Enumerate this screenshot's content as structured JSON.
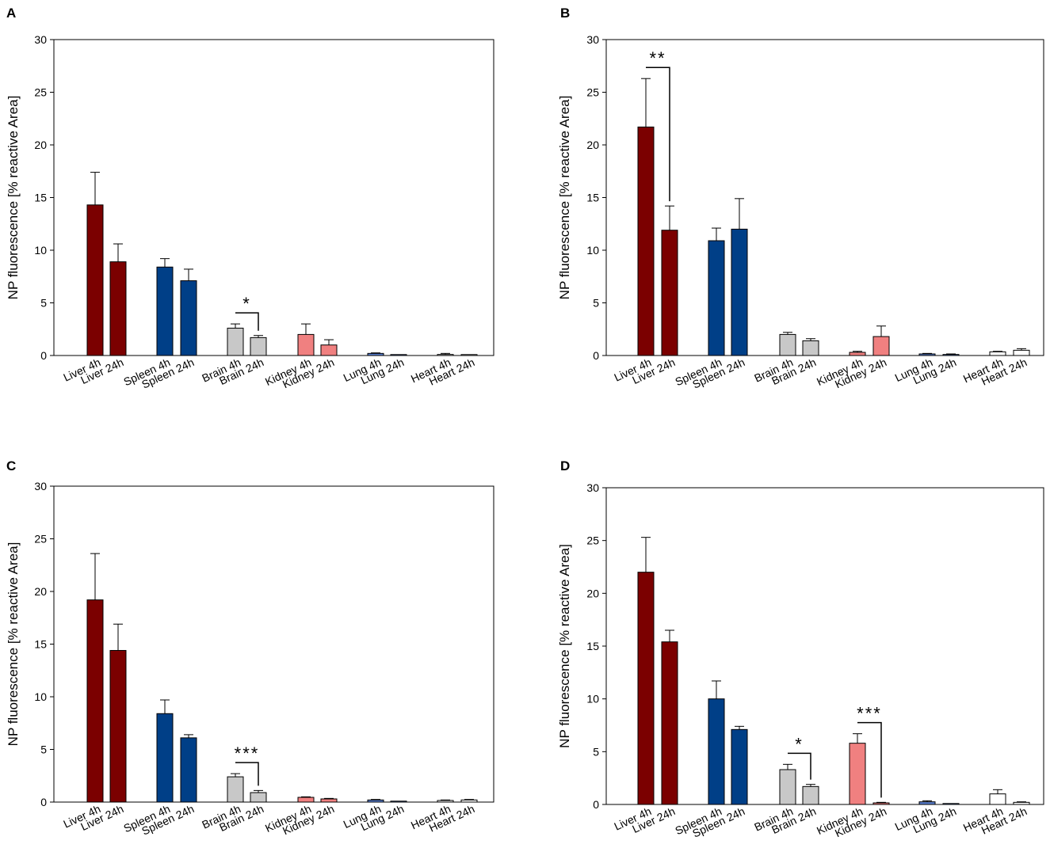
{
  "chart_data": [
    {
      "panel": "A",
      "type": "bar",
      "ylabel": "NP fluorescence [% reactive Area]",
      "ylim": [
        0,
        30
      ],
      "yticks": [
        0,
        5,
        10,
        15,
        20,
        25,
        30
      ],
      "categories": [
        "Liver 4h",
        "Liver 24h",
        "Spleen 4h",
        "Spleen 24h",
        "Brain 4h",
        "Brain 24h",
        "Kidney 4h",
        "Kidney 24h",
        "Lung 4h",
        "Lung 24h",
        "Heart 4h",
        "Heart 24h"
      ],
      "values": [
        14.3,
        8.9,
        8.4,
        7.1,
        2.6,
        1.7,
        2.0,
        1.0,
        0.2,
        0.05,
        0.1,
        0.05
      ],
      "errors": [
        3.1,
        1.7,
        0.8,
        1.1,
        0.4,
        0.2,
        1.0,
        0.5,
        0.05,
        0.02,
        0.1,
        0.02
      ],
      "colors": [
        "#7b0000",
        "#7b0000",
        "#003f87",
        "#003f87",
        "#c8c8c8",
        "#c8c8c8",
        "#f08080",
        "#f08080",
        "#5a7fd0",
        "#5a7fd0",
        "#ffffff",
        "#ffffff"
      ],
      "annotations": [
        {
          "label": "*",
          "from": 4,
          "to": 5
        }
      ]
    },
    {
      "panel": "B",
      "type": "bar",
      "ylabel": "NP fluorescence [% reactive Area]",
      "ylim": [
        0,
        30
      ],
      "yticks": [
        0,
        5,
        10,
        15,
        20,
        25,
        30
      ],
      "categories": [
        "Liver 4h",
        "Liver 24h",
        "Spleen 4h",
        "Spleen 24h",
        "Brain 4h",
        "Brain 24h",
        "Kidney 4h",
        "Kidney 24h",
        "Lung 4h",
        "Lung 24h",
        "Heart 4h",
        "Heart 24h"
      ],
      "values": [
        21.7,
        11.9,
        10.9,
        12.0,
        2.0,
        1.4,
        0.3,
        1.8,
        0.15,
        0.1,
        0.35,
        0.5
      ],
      "errors": [
        4.6,
        2.3,
        1.2,
        2.9,
        0.2,
        0.2,
        0.1,
        1.0,
        0.05,
        0.05,
        0.05,
        0.15
      ],
      "colors": [
        "#7b0000",
        "#7b0000",
        "#003f87",
        "#003f87",
        "#c8c8c8",
        "#c8c8c8",
        "#f08080",
        "#f08080",
        "#5a7fd0",
        "#5a7fd0",
        "#ffffff",
        "#ffffff"
      ],
      "annotations": [
        {
          "label": "**",
          "from": 0,
          "to": 1
        }
      ]
    },
    {
      "panel": "C",
      "type": "bar",
      "ylabel": "NP fluorescence [% reactive Area]",
      "ylim": [
        0,
        30
      ],
      "yticks": [
        0,
        5,
        10,
        15,
        20,
        25,
        30
      ],
      "categories": [
        "Liver 4h",
        "Liver 24h",
        "Spleen 4h",
        "Spleen 24h",
        "Brain 4h",
        "Brain 24h",
        "Kidney 4h",
        "Kidney 24h",
        "Lung 4h",
        "Lung 24h",
        "Heart 4h",
        "Heart 24h"
      ],
      "values": [
        19.2,
        14.4,
        8.4,
        6.1,
        2.4,
        0.9,
        0.45,
        0.3,
        0.2,
        0.05,
        0.15,
        0.2
      ],
      "errors": [
        4.4,
        2.5,
        1.3,
        0.3,
        0.3,
        0.2,
        0.05,
        0.05,
        0.05,
        0.02,
        0.05,
        0.05
      ],
      "colors": [
        "#7b0000",
        "#7b0000",
        "#003f87",
        "#003f87",
        "#c8c8c8",
        "#c8c8c8",
        "#f08080",
        "#f08080",
        "#5a7fd0",
        "#5a7fd0",
        "#ffffff",
        "#ffffff"
      ],
      "annotations": [
        {
          "label": "***",
          "from": 4,
          "to": 5
        }
      ]
    },
    {
      "panel": "D",
      "type": "bar",
      "ylabel": "NP fluorescence [% reactive Area]",
      "ylim": [
        0,
        30
      ],
      "yticks": [
        0,
        5,
        10,
        15,
        20,
        25,
        30
      ],
      "categories": [
        "Liver 4h",
        "Liver 24h",
        "Spleen 4h",
        "Spleen 24h",
        "Brain 4h",
        "Brain 24h",
        "Kidney 4h",
        "Kidney 24h",
        "Lung 4h",
        "Lung 24h",
        "Heart 4h",
        "Heart 24h"
      ],
      "values": [
        22.0,
        15.4,
        10.0,
        7.1,
        3.3,
        1.7,
        5.8,
        0.15,
        0.25,
        0.05,
        1.0,
        0.2
      ],
      "errors": [
        3.3,
        1.1,
        1.7,
        0.3,
        0.5,
        0.2,
        0.9,
        0.05,
        0.1,
        0.02,
        0.4,
        0.05
      ],
      "colors": [
        "#7b0000",
        "#7b0000",
        "#003f87",
        "#003f87",
        "#c8c8c8",
        "#c8c8c8",
        "#f08080",
        "#f08080",
        "#5a7fd0",
        "#5a7fd0",
        "#ffffff",
        "#ffffff"
      ],
      "annotations": [
        {
          "label": "*",
          "from": 4,
          "to": 5
        },
        {
          "label": "***",
          "from": 6,
          "to": 7
        }
      ]
    }
  ]
}
